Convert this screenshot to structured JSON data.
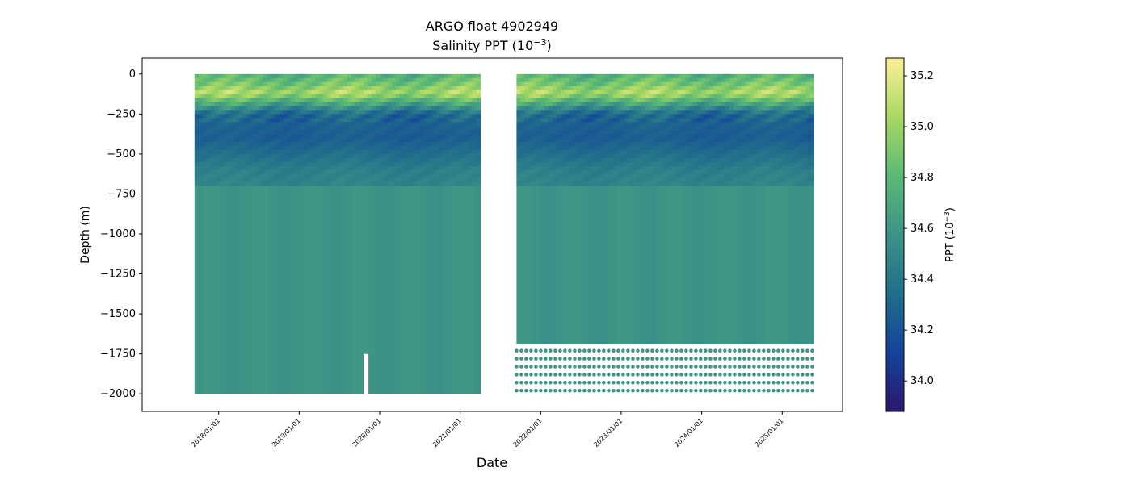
{
  "chart_data": {
    "type": "scatter",
    "title_line1": "ARGO float 4902949",
    "title_line2_prefix": "Salinity PPT (10",
    "title_line2_exp": "−3",
    "title_line2_suffix": ")",
    "xlabel": "Date",
    "ylabel": "Depth (m)",
    "colorbar_label_prefix": "PPT (10",
    "colorbar_label_exp": "−3",
    "colorbar_label_suffix": ")",
    "colormap": "haline",
    "colormap_stops": [
      "#2a186c",
      "#14439c",
      "#206e8b",
      "#3c9387",
      "#5aba75",
      "#a9d862",
      "#fdef9a"
    ],
    "colorbar_range": [
      33.88,
      35.27
    ],
    "colorbar_ticks": [
      34.0,
      34.2,
      34.4,
      34.6,
      34.8,
      35.0,
      35.2
    ],
    "colorbar_tick_labels": [
      "34.0",
      "34.2",
      "34.4",
      "34.6",
      "34.8",
      "35.0",
      "35.2"
    ],
    "x_range_years": [
      2017.05,
      2025.75
    ],
    "x_ticks_years": [
      2018,
      2019,
      2020,
      2021,
      2022,
      2023,
      2024,
      2025
    ],
    "x_tick_labels": [
      "2018/01/01",
      "2019/01/01",
      "2020/01/01",
      "2021/01/01",
      "2022/01/01",
      "2023/01/01",
      "2024/01/01",
      "2025/01/01"
    ],
    "y_range": [
      -2110,
      100
    ],
    "y_ticks": [
      0,
      -250,
      -500,
      -750,
      -1000,
      -1250,
      -1500,
      -1750,
      -2000
    ],
    "y_tick_labels": [
      "0",
      "−250",
      "−500",
      "−750",
      "−1000",
      "−1250",
      "−1500",
      "−1750",
      "−2000"
    ],
    "deployment_periods": [
      {
        "start": 2017.7,
        "end": 2021.25,
        "max_depth": -2000
      },
      {
        "start": 2021.7,
        "end": 2025.39,
        "max_depth": -1690
      }
    ],
    "profile_gap": {
      "start": 2019.8,
      "end": 2019.86,
      "max_depth": -1750
    },
    "deep_discrete_levels": [
      -1730,
      -1780,
      -1830,
      -1880,
      -1930,
      -1980
    ],
    "salinity_profile": [
      {
        "depth": 0,
        "value": 34.75
      },
      {
        "depth": -50,
        "value": 34.85
      },
      {
        "depth": -120,
        "value": 35.05
      },
      {
        "depth": -180,
        "value": 34.7
      },
      {
        "depth": -250,
        "value": 34.3
      },
      {
        "depth": -400,
        "value": 34.25
      },
      {
        "depth": -600,
        "value": 34.45
      },
      {
        "depth": -900,
        "value": 34.55
      },
      {
        "depth": -1300,
        "value": 34.58
      },
      {
        "depth": -2000,
        "value": 34.6
      }
    ]
  }
}
